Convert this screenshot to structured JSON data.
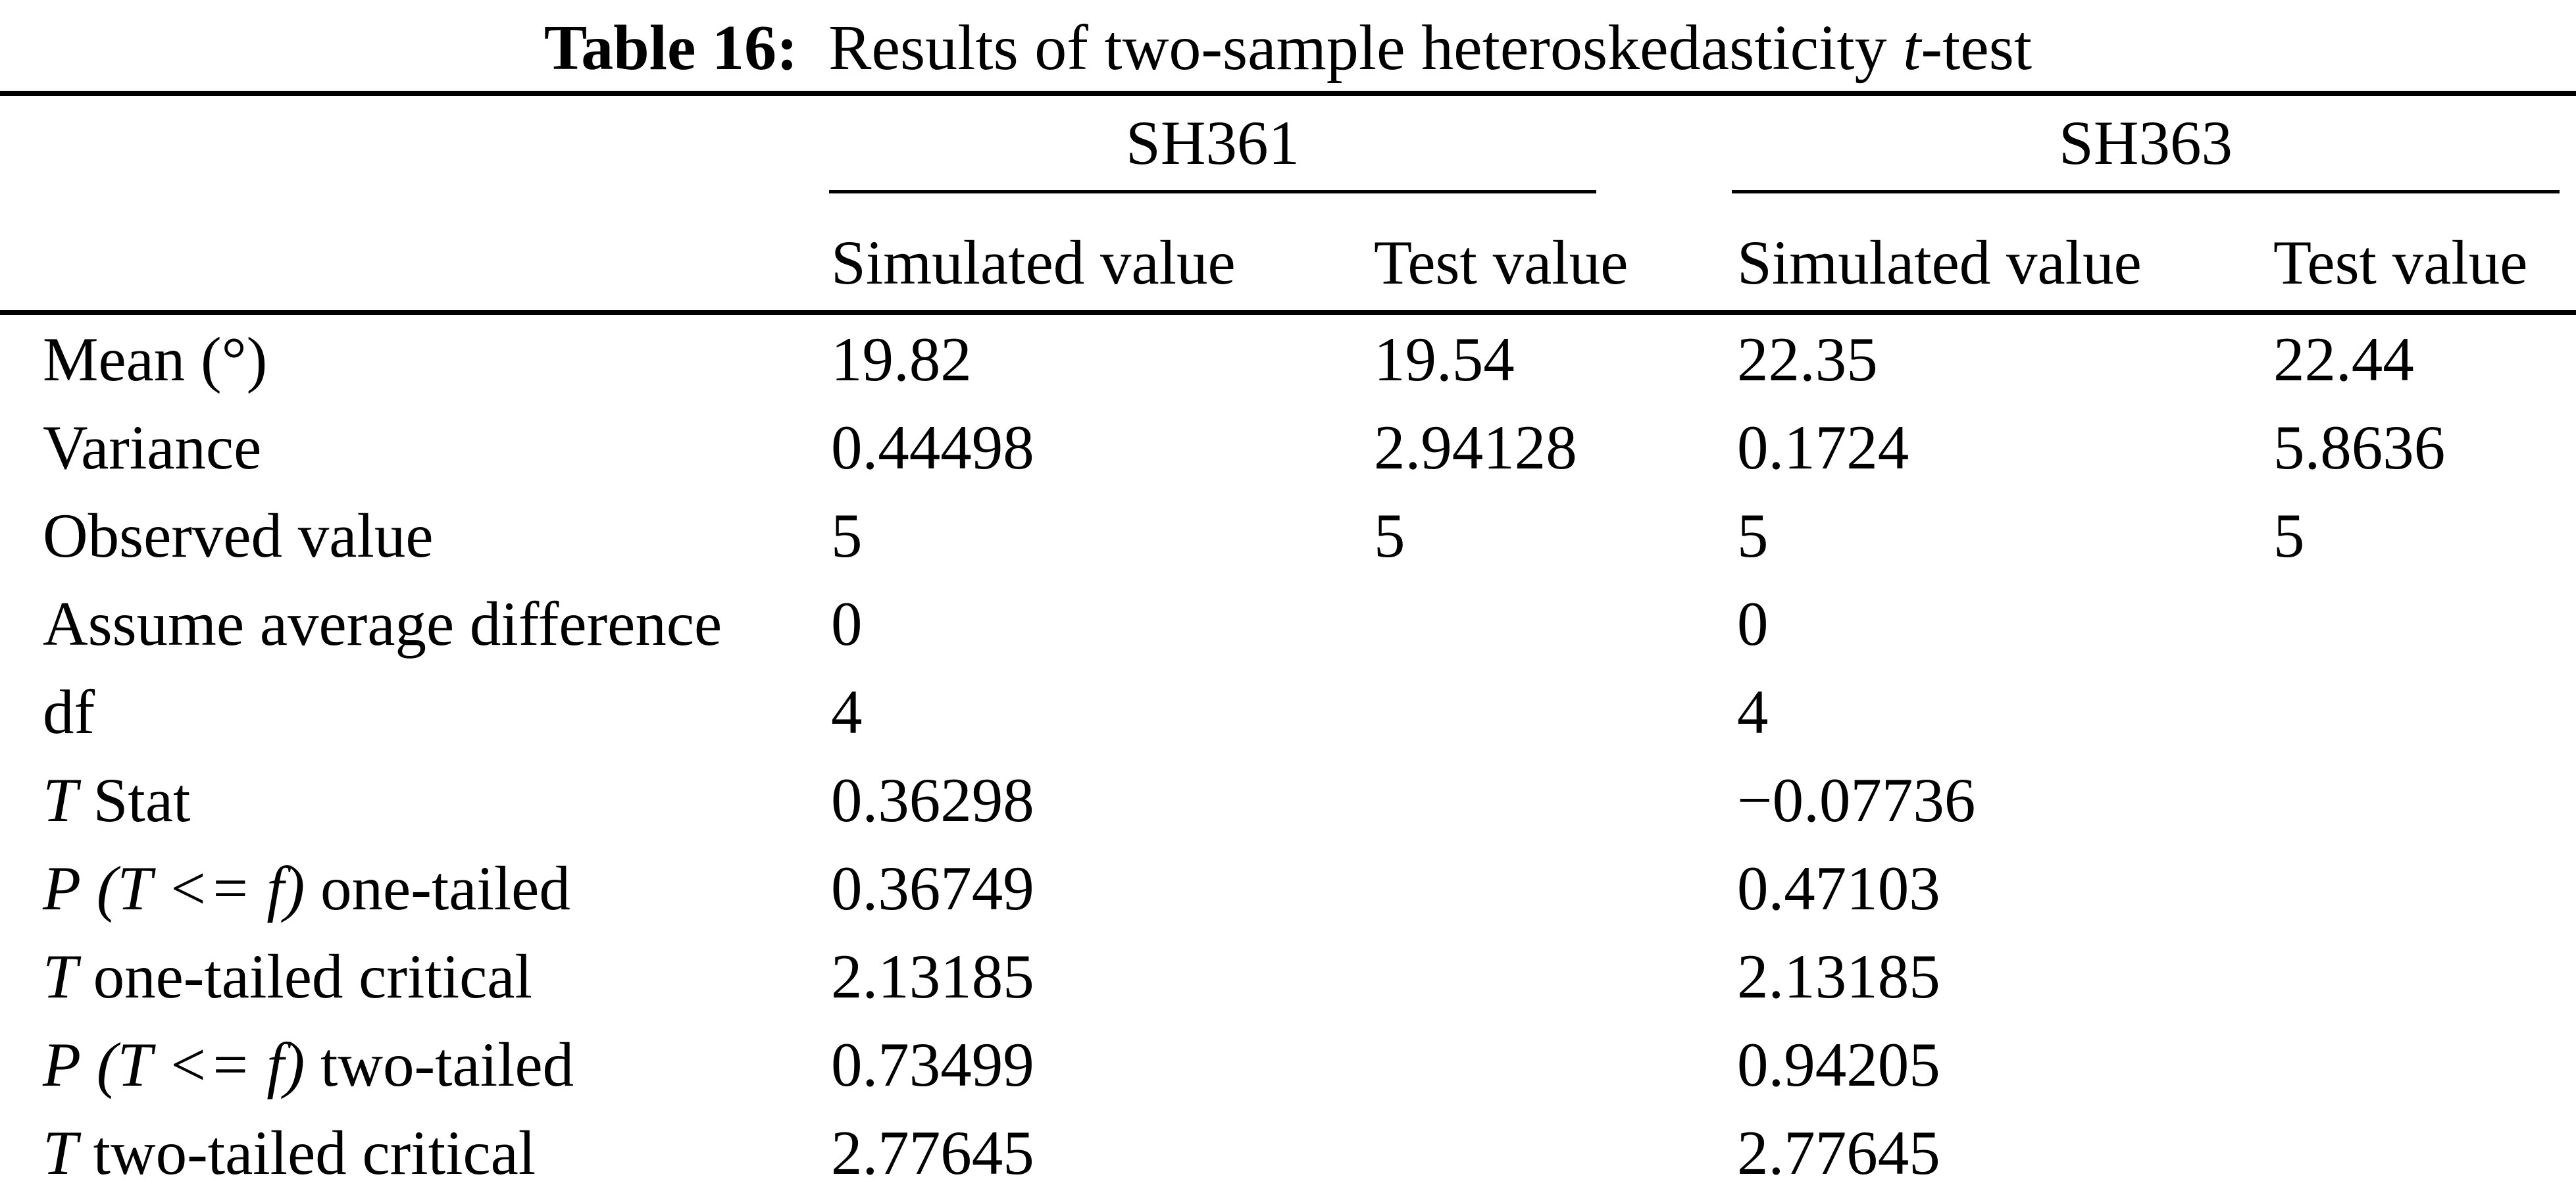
{
  "caption": {
    "label": "Table 16:",
    "text": " Results of two-sample heteroskedasticity ",
    "italic": "t",
    "suffix": "-test"
  },
  "table": {
    "groups": [
      {
        "name": "SH361"
      },
      {
        "name": "SH363"
      }
    ],
    "sub_headers": [
      "Simulated value",
      "Test value",
      "Simulated value",
      "Test value"
    ],
    "rows": [
      {
        "label": [
          {
            "text": "Mean (°)"
          }
        ],
        "values": [
          "19.82",
          "19.54",
          "22.35",
          "22.44"
        ]
      },
      {
        "label": [
          {
            "text": "Variance"
          }
        ],
        "values": [
          "0.44498",
          "2.94128",
          "0.1724",
          "5.8636"
        ]
      },
      {
        "label": [
          {
            "text": "Observed value"
          }
        ],
        "values": [
          "5",
          "5",
          "5",
          "5"
        ]
      },
      {
        "label": [
          {
            "text": "Assume average difference"
          }
        ],
        "values": [
          "0",
          "",
          "0",
          ""
        ]
      },
      {
        "label": [
          {
            "text": "df"
          }
        ],
        "values": [
          "4",
          "",
          "4",
          ""
        ]
      },
      {
        "label": [
          {
            "text": "T",
            "italic": true
          },
          {
            "text": " Stat"
          }
        ],
        "values": [
          "0.36298",
          "",
          "−0.07736",
          ""
        ]
      },
      {
        "label": [
          {
            "text": "P",
            "italic": true
          },
          {
            "text": " "
          },
          {
            "text": "(T <= f)",
            "italic": true
          },
          {
            "text": " one-tailed"
          }
        ],
        "values": [
          "0.36749",
          "",
          "0.47103",
          ""
        ]
      },
      {
        "label": [
          {
            "text": "T",
            "italic": true
          },
          {
            "text": " one-tailed critical"
          }
        ],
        "values": [
          "2.13185",
          "",
          "2.13185",
          ""
        ]
      },
      {
        "label": [
          {
            "text": "P",
            "italic": true
          },
          {
            "text": " "
          },
          {
            "text": "(T <= f)",
            "italic": true
          },
          {
            "text": " two-tailed"
          }
        ],
        "values": [
          "0.73499",
          "",
          "0.94205",
          ""
        ]
      },
      {
        "label": [
          {
            "text": "T",
            "italic": true
          },
          {
            "text": " two-tailed critical"
          }
        ],
        "values": [
          "2.77645",
          "",
          "2.77645",
          ""
        ]
      }
    ]
  }
}
